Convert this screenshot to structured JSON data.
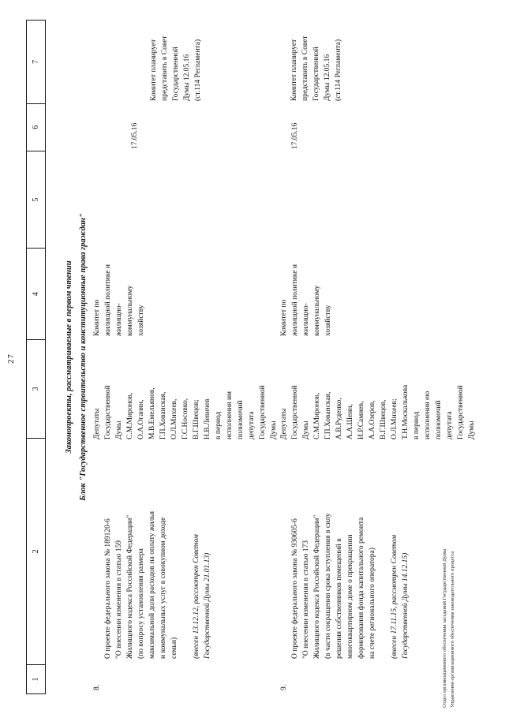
{
  "page_number": "27",
  "stamp": {
    "line1": "Отдел организационного обеспечения заседаний Государственной Думы",
    "line2": "Управления организационного обеспечения законодательного процесса"
  },
  "header_cells": [
    "1",
    "2",
    "3",
    "4",
    "5",
    "6",
    "7"
  ],
  "section": {
    "title": "Законопроекты, рассматриваемые в первом чтении",
    "block": "Блок \"Государственное строительство и конституционные права граждан\""
  },
  "rows": [
    {
      "num": "8.",
      "bill_lines": [
        "О проекте федерального закона № 189120-6",
        "\"О внесении изменения в статью 159",
        "Жилищного кодекса Российской Федерации\"",
        "(по вопросу установления размера",
        "максимальной доли расходов на оплату жилья",
        "и коммунальных услуг в совокупном доходе",
        "семьи)"
      ],
      "bill_note_lines": [
        "(внесен 13.12.12, рассмотрен Советом",
        "Государственной Думы 21.01.13)"
      ],
      "initiators_lines": [
        "Депутаты",
        "Государственной",
        "Думы",
        "С.М.Миронов,",
        "О.А.Оганян,",
        "М.В.Емельянов,",
        "Г.П.Хованская,",
        "О.Л.Михеев,",
        "Г.С.Носовко,",
        "В.Г.Швецов;",
        "Н.В.Левичев",
        "в период",
        "исполнения им",
        "полномочий",
        "депутата",
        "Государственной",
        "Думы"
      ],
      "committee_lines": [
        "Комитет по",
        "жилищной политике и",
        "жилищно-",
        "коммунальному",
        "хозяйству"
      ],
      "date": "17.05.16",
      "note_lines": [
        "Комитет планирует",
        "представить в Совет",
        "Государственной",
        "Думы 12.05.16",
        "(ст.114 Регламента)"
      ]
    },
    {
      "num": "9.",
      "bill_lines": [
        "О проекте федерального закона № 930605-6",
        "\"О внесении изменения в статью 173",
        "Жилищного кодекса Российской Федерации\"",
        "(в части сокращения срока вступления в силу",
        "решения собственников помещений в",
        "многоквартирном доме о прекращении",
        "формирования фонда капитального ремонта",
        "на счете регионального оператора)"
      ],
      "bill_note_lines": [
        "(внесен 17.11.15, рассмотрен Советом",
        "Государственной Думы 14.12.15)"
      ],
      "initiators_lines": [
        "Депутаты",
        "Государственной",
        "Думы",
        "С.М.Миронов,",
        "Г.П.Хованская,",
        "А.В.Руденко,",
        "А.А.Шеин,",
        "И.Р.Самиев,",
        "А.А.Озеров,",
        "В.Г.Швецов,",
        "О.Л.Михеев;",
        "Т.Н.Москалькова",
        "в период",
        "исполнения ею",
        "полномочий",
        "депутата",
        "Государственной",
        "Думы"
      ],
      "committee_lines": [
        "Комитет по",
        "жилищной политике и",
        "жилищно-",
        "коммунальному",
        "хозяйству"
      ],
      "date": "17.05.16",
      "note_lines": [
        "Комитет планирует",
        "представить в Совет",
        "Государственной",
        "Думы 12.05.16",
        "(ст.114 Регламента)"
      ]
    }
  ]
}
